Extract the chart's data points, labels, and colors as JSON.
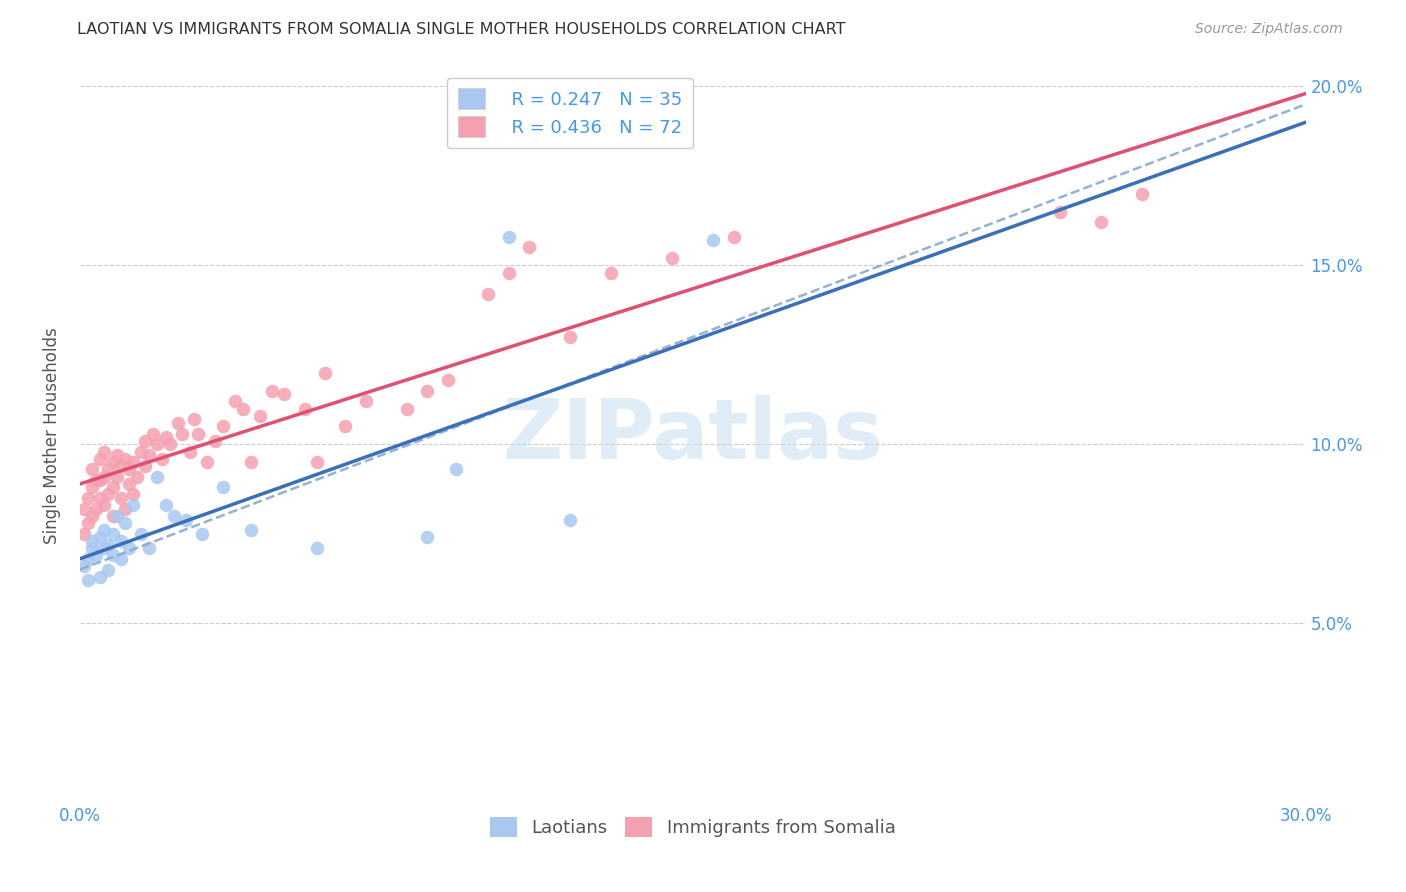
{
  "title": "LAOTIAN VS IMMIGRANTS FROM SOMALIA SINGLE MOTHER HOUSEHOLDS CORRELATION CHART",
  "source": "Source: ZipAtlas.com",
  "ylabel": "Single Mother Households",
  "xlim": [
    0.0,
    0.3
  ],
  "ylim": [
    0.0,
    0.205
  ],
  "laotian_R": 0.247,
  "laotian_N": 35,
  "somalia_R": 0.436,
  "somalia_N": 72,
  "laotian_color": "#a8c8f0",
  "somalia_color": "#f5a0b0",
  "laotian_line_color": "#3a6fba",
  "somalia_line_color": "#e05070",
  "dashed_line_color": "#88aacc",
  "right_axis_color": "#4499ee",
  "watermark_color": "#c8ddf0",
  "title_fontsize": 11.5,
  "axis_label_fontsize": 12,
  "watermark": "ZIPatlas",
  "laotian_x": [
    0.001,
    0.002,
    0.002,
    0.003,
    0.003,
    0.004,
    0.005,
    0.005,
    0.006,
    0.006,
    0.007,
    0.007,
    0.008,
    0.008,
    0.009,
    0.01,
    0.01,
    0.011,
    0.012,
    0.013,
    0.015,
    0.017,
    0.019,
    0.021,
    0.023,
    0.026,
    0.03,
    0.035,
    0.042,
    0.058,
    0.085,
    0.092,
    0.105,
    0.12,
    0.155
  ],
  "laotian_y": [
    0.066,
    0.062,
    0.068,
    0.071,
    0.073,
    0.069,
    0.063,
    0.074,
    0.071,
    0.076,
    0.072,
    0.065,
    0.075,
    0.069,
    0.08,
    0.068,
    0.073,
    0.078,
    0.071,
    0.083,
    0.075,
    0.071,
    0.091,
    0.083,
    0.08,
    0.079,
    0.075,
    0.088,
    0.076,
    0.071,
    0.074,
    0.093,
    0.158,
    0.079,
    0.157
  ],
  "somalia_x": [
    0.001,
    0.001,
    0.002,
    0.002,
    0.003,
    0.003,
    0.003,
    0.004,
    0.004,
    0.005,
    0.005,
    0.005,
    0.006,
    0.006,
    0.006,
    0.007,
    0.007,
    0.008,
    0.008,
    0.008,
    0.009,
    0.009,
    0.01,
    0.01,
    0.011,
    0.011,
    0.012,
    0.012,
    0.013,
    0.013,
    0.014,
    0.015,
    0.016,
    0.016,
    0.017,
    0.018,
    0.019,
    0.02,
    0.021,
    0.022,
    0.024,
    0.025,
    0.027,
    0.028,
    0.029,
    0.031,
    0.033,
    0.035,
    0.038,
    0.04,
    0.042,
    0.044,
    0.047,
    0.05,
    0.055,
    0.058,
    0.06,
    0.065,
    0.07,
    0.08,
    0.085,
    0.09,
    0.1,
    0.105,
    0.11,
    0.12,
    0.13,
    0.145,
    0.16,
    0.24,
    0.25,
    0.26
  ],
  "somalia_y": [
    0.075,
    0.082,
    0.078,
    0.085,
    0.08,
    0.088,
    0.093,
    0.082,
    0.09,
    0.085,
    0.09,
    0.096,
    0.083,
    0.091,
    0.098,
    0.086,
    0.093,
    0.08,
    0.088,
    0.095,
    0.091,
    0.097,
    0.085,
    0.094,
    0.082,
    0.096,
    0.089,
    0.093,
    0.086,
    0.095,
    0.091,
    0.098,
    0.094,
    0.101,
    0.097,
    0.103,
    0.1,
    0.096,
    0.102,
    0.1,
    0.106,
    0.103,
    0.098,
    0.107,
    0.103,
    0.095,
    0.101,
    0.105,
    0.112,
    0.11,
    0.095,
    0.108,
    0.115,
    0.114,
    0.11,
    0.095,
    0.12,
    0.105,
    0.112,
    0.11,
    0.115,
    0.118,
    0.142,
    0.148,
    0.155,
    0.13,
    0.148,
    0.152,
    0.158,
    0.165,
    0.162,
    0.17
  ]
}
